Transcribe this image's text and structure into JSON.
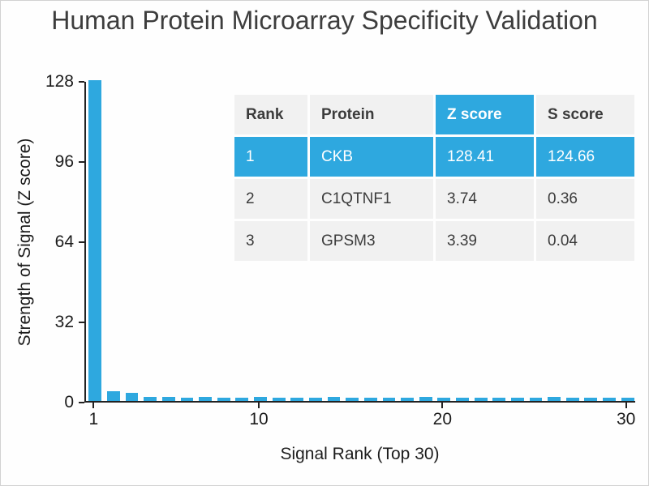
{
  "title": "Human Protein Microarray Specificity Validation",
  "colors": {
    "accent": "#2EA8DF",
    "axis": "#222222",
    "title_text": "#3d3d3d",
    "table_text": "#3c3c3c",
    "highlight_text": "#ffffff",
    "table_cell_bg": "#f1f1f1"
  },
  "chart_data": {
    "type": "bar",
    "title": "Human Protein Microarray Specificity Validation",
    "xlabel": "Signal Rank (Top 30)",
    "ylabel": "Strength of Signal (Z score)",
    "ylim": [
      0,
      128
    ],
    "yticks": [
      0,
      32,
      64,
      96,
      128
    ],
    "xticks": [
      1,
      10,
      20,
      30
    ],
    "grid": false,
    "legend": "none",
    "bar_color": "#2EA8DF",
    "x": [
      1,
      2,
      3,
      4,
      5,
      6,
      7,
      8,
      9,
      10,
      11,
      12,
      13,
      14,
      15,
      16,
      17,
      18,
      19,
      20,
      21,
      22,
      23,
      24,
      25,
      26,
      27,
      28,
      29,
      30
    ],
    "values": [
      128.41,
      3.74,
      3.39,
      1.6,
      1.5,
      1.4,
      1.5,
      1.3,
      1.4,
      1.5,
      1.3,
      1.4,
      1.2,
      1.5,
      1.3,
      1.4,
      1.2,
      1.3,
      1.5,
      1.2,
      1.4,
      1.3,
      1.2,
      1.4,
      1.3,
      1.5,
      1.2,
      1.3,
      1.4,
      1.2
    ]
  },
  "inset_table": {
    "headers": [
      "Rank",
      "Protein",
      "Z score",
      "S score"
    ],
    "accent_header_index": 2,
    "rows": [
      {
        "rank": "1",
        "protein": "CKB",
        "z": "128.41",
        "s": "124.66",
        "highlight": true
      },
      {
        "rank": "2",
        "protein": "C1QTNF1",
        "z": "3.74",
        "s": "0.36",
        "highlight": false
      },
      {
        "rank": "3",
        "protein": "GPSM3",
        "z": "3.39",
        "s": "0.04",
        "highlight": false
      }
    ]
  }
}
